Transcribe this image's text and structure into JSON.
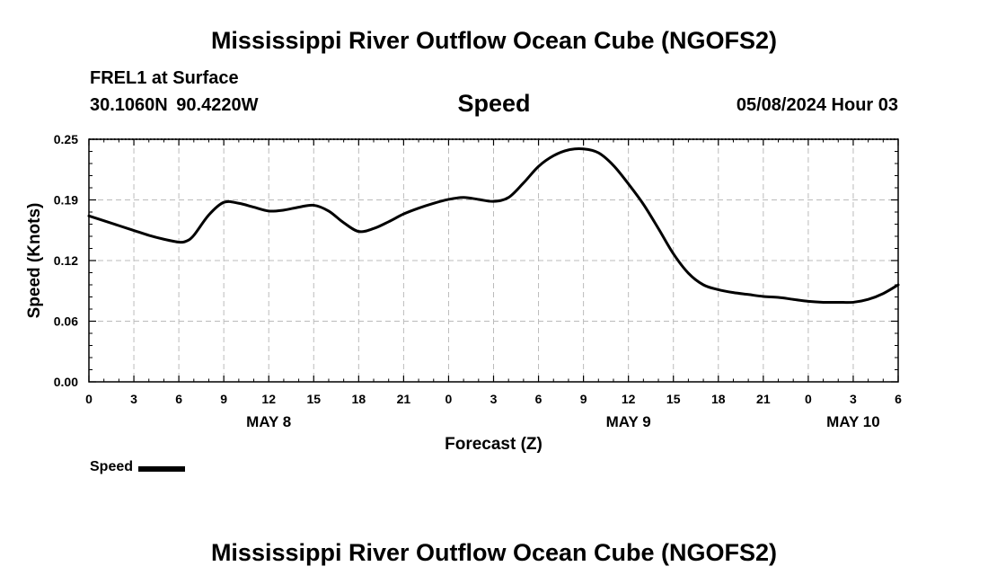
{
  "header": {
    "title": "Mississippi River Outflow Ocean Cube (NGOFS2)",
    "station": "FREL1 at Surface",
    "coords": "30.1060N  90.4220W",
    "variable": "Speed",
    "datetime": "05/08/2024 Hour 03"
  },
  "footer": {
    "title": "Mississippi River Outflow Ocean Cube (NGOFS2)"
  },
  "legend": {
    "label": "Speed",
    "color": "#000000"
  },
  "chart_data": {
    "type": "line",
    "title": "Speed",
    "xlabel": "Forecast (Z)",
    "ylabel": "Speed (Knots)",
    "xlim": [
      0,
      54
    ],
    "ylim": [
      0,
      0.25
    ],
    "grid": true,
    "x_ticks": [
      0,
      3,
      6,
      9,
      12,
      15,
      18,
      21,
      24,
      27,
      30,
      33,
      36,
      39,
      42,
      45,
      48,
      51,
      54
    ],
    "x_tick_labels": [
      "0",
      "3",
      "6",
      "9",
      "12",
      "15",
      "18",
      "21",
      "0",
      "3",
      "6",
      "9",
      "12",
      "15",
      "18",
      "21",
      "0",
      "3",
      "6"
    ],
    "y_ticks": [
      0,
      0.0625,
      0.125,
      0.1875,
      0.25
    ],
    "y_tick_labels": [
      "0.00",
      "0.06",
      "0.12",
      "0.19",
      "0.25"
    ],
    "date_labels": [
      {
        "x": 12,
        "label": "MAY 8"
      },
      {
        "x": 36,
        "label": "MAY 9"
      },
      {
        "x": 51,
        "label": "MAY 10"
      }
    ],
    "series": [
      {
        "name": "Speed",
        "color": "#000000",
        "x": [
          0,
          1,
          2,
          3,
          4,
          5,
          6,
          6.5,
          7,
          8,
          9,
          10,
          11,
          12,
          13,
          14,
          15,
          16,
          17,
          18,
          19,
          20,
          21,
          22,
          23,
          24,
          25,
          26,
          27,
          28,
          29,
          30,
          31,
          32,
          33,
          34,
          35,
          36,
          37,
          38,
          39,
          40,
          41,
          42,
          43,
          44,
          45,
          46,
          47,
          48,
          49,
          50,
          51,
          52,
          53,
          54
        ],
        "values": [
          0.171,
          0.166,
          0.161,
          0.156,
          0.151,
          0.147,
          0.144,
          0.145,
          0.151,
          0.172,
          0.185,
          0.184,
          0.18,
          0.176,
          0.177,
          0.18,
          0.182,
          0.176,
          0.164,
          0.155,
          0.158,
          0.165,
          0.173,
          0.179,
          0.184,
          0.188,
          0.19,
          0.188,
          0.186,
          0.19,
          0.205,
          0.222,
          0.233,
          0.239,
          0.24,
          0.236,
          0.223,
          0.204,
          0.183,
          0.158,
          0.132,
          0.112,
          0.1,
          0.095,
          0.092,
          0.09,
          0.088,
          0.087,
          0.085,
          0.083,
          0.082,
          0.082,
          0.082,
          0.085,
          0.091,
          0.1
        ]
      }
    ]
  }
}
